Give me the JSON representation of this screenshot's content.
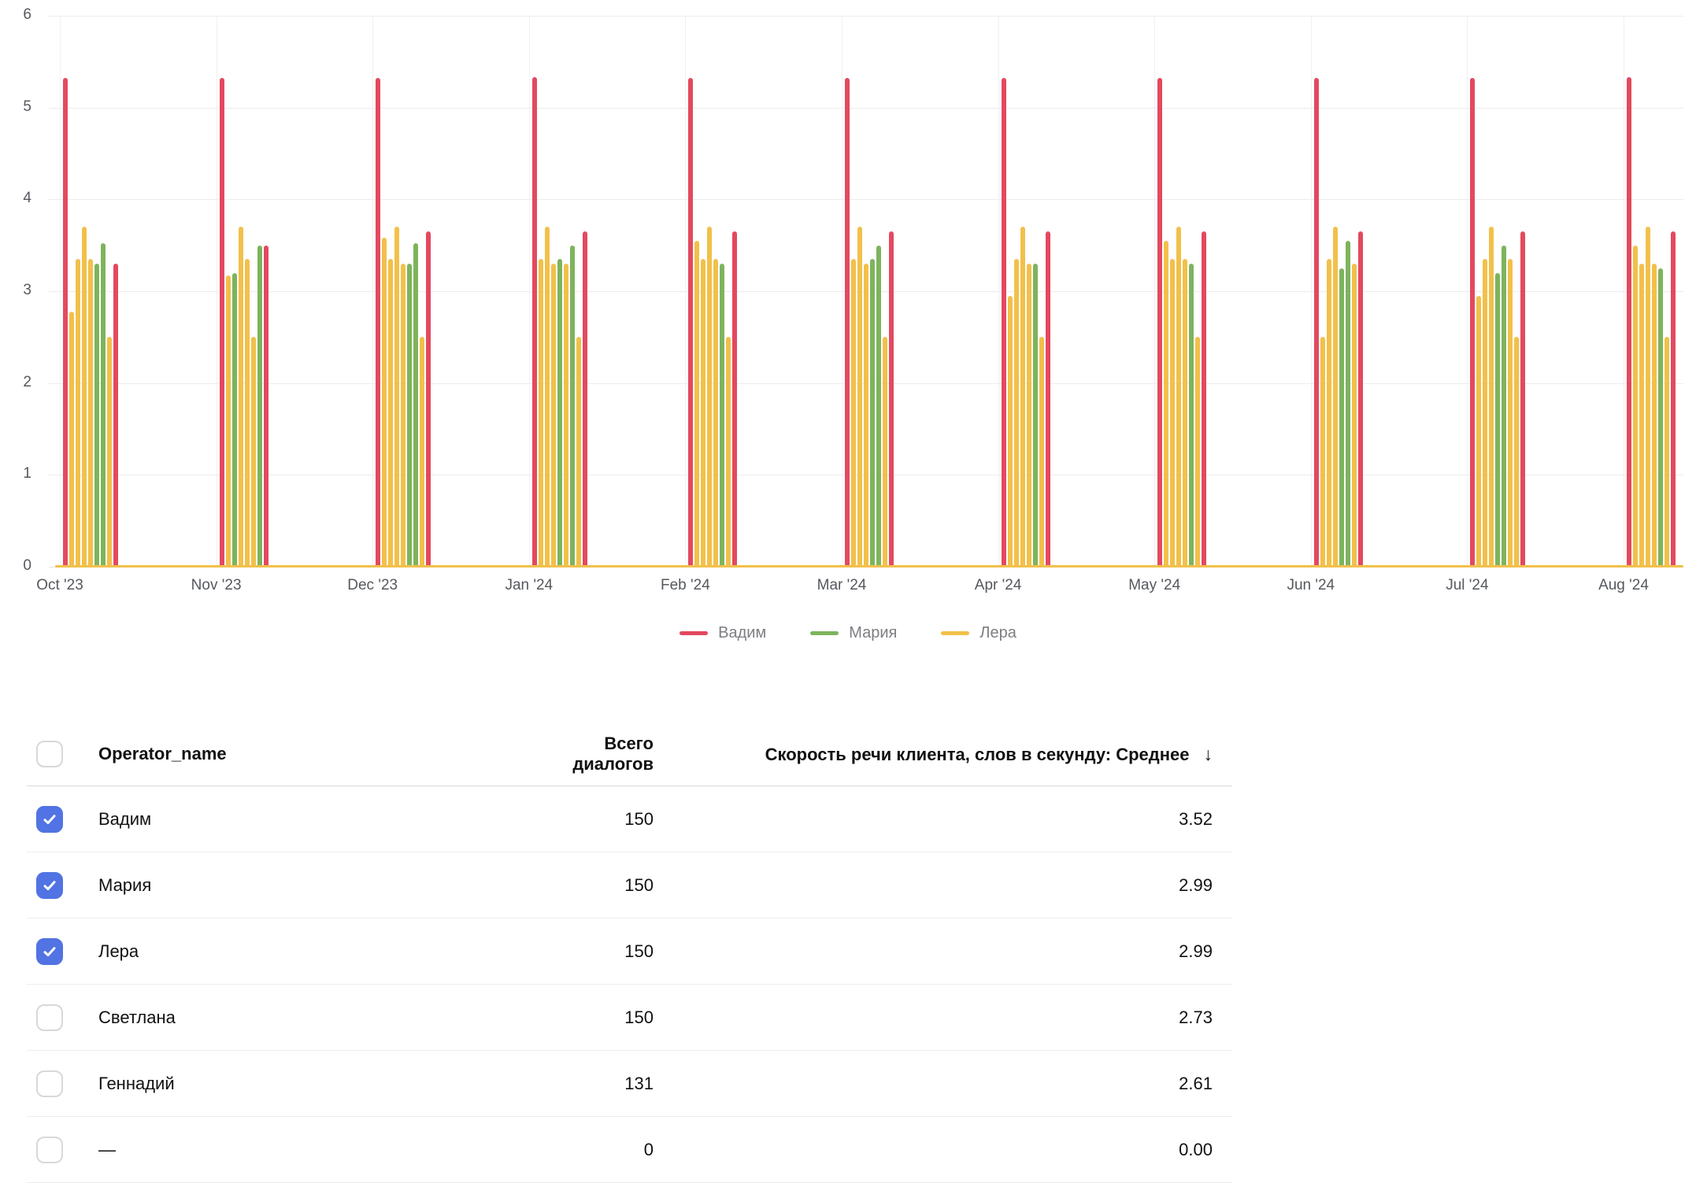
{
  "chart_data": {
    "type": "bar",
    "title": "",
    "xlabel": "",
    "ylabel": "",
    "ylim": [
      0,
      6
    ],
    "yticks": [
      0,
      1,
      2,
      3,
      4,
      5,
      6
    ],
    "grid": true,
    "legend_position": "bottom",
    "categories": [
      "Oct '23",
      "Nov '23",
      "Dec '23",
      "Jan '24",
      "Feb '24",
      "Mar '24",
      "Apr '24",
      "May '24",
      "Jun '24",
      "Jul '24",
      "Aug '24"
    ],
    "legend": [
      "Вадим",
      "Мария",
      "Лера"
    ],
    "series_colors": {
      "Вадим": "#e3495f",
      "Мария": "#7db45c",
      "Лера": "#f2c04a"
    },
    "baseline_series": "Лера",
    "baseline_value": 0.03,
    "clusters": [
      {
        "month": "Oct '23",
        "bars": [
          {
            "series": "Вадим",
            "value": 5.32
          },
          {
            "series": "Лера",
            "value": 2.78
          },
          {
            "series": "Лера",
            "value": 3.35
          },
          {
            "series": "Лера",
            "value": 3.7
          },
          {
            "series": "Лера",
            "value": 3.35
          },
          {
            "series": "Мария",
            "value": 3.3
          },
          {
            "series": "Мария",
            "value": 3.52
          },
          {
            "series": "Лера",
            "value": 2.5
          },
          {
            "series": "Вадим",
            "value": 3.3
          }
        ]
      },
      {
        "month": "Nov '23",
        "bars": [
          {
            "series": "Вадим",
            "value": 5.32
          },
          {
            "series": "Лера",
            "value": 3.17
          },
          {
            "series": "Мария",
            "value": 3.2
          },
          {
            "series": "Лера",
            "value": 3.7
          },
          {
            "series": "Лера",
            "value": 3.35
          },
          {
            "series": "Лера",
            "value": 2.5
          },
          {
            "series": "Мария",
            "value": 3.5
          },
          {
            "series": "Вадим",
            "value": 3.5
          }
        ]
      },
      {
        "month": "Dec '23",
        "bars": [
          {
            "series": "Вадим",
            "value": 5.32
          },
          {
            "series": "Лера",
            "value": 3.58
          },
          {
            "series": "Лера",
            "value": 3.35
          },
          {
            "series": "Лера",
            "value": 3.7
          },
          {
            "series": "Лера",
            "value": 3.3
          },
          {
            "series": "Мария",
            "value": 3.3
          },
          {
            "series": "Мария",
            "value": 3.52
          },
          {
            "series": "Лера",
            "value": 2.5
          },
          {
            "series": "Вадим",
            "value": 3.65
          }
        ]
      },
      {
        "month": "Jan '24",
        "bars": [
          {
            "series": "Вадим",
            "value": 5.33
          },
          {
            "series": "Лера",
            "value": 3.35
          },
          {
            "series": "Лера",
            "value": 3.7
          },
          {
            "series": "Лера",
            "value": 3.3
          },
          {
            "series": "Мария",
            "value": 3.35
          },
          {
            "series": "Лера",
            "value": 3.3
          },
          {
            "series": "Мария",
            "value": 3.5
          },
          {
            "series": "Лера",
            "value": 2.5
          },
          {
            "series": "Вадим",
            "value": 3.65
          }
        ]
      },
      {
        "month": "Feb '24",
        "bars": [
          {
            "series": "Вадим",
            "value": 5.32
          },
          {
            "series": "Лера",
            "value": 3.55
          },
          {
            "series": "Лера",
            "value": 3.35
          },
          {
            "series": "Лера",
            "value": 3.7
          },
          {
            "series": "Лера",
            "value": 3.35
          },
          {
            "series": "Мария",
            "value": 3.3
          },
          {
            "series": "Лера",
            "value": 2.5
          },
          {
            "series": "Вадим",
            "value": 3.65
          }
        ]
      },
      {
        "month": "Mar '24",
        "bars": [
          {
            "series": "Вадим",
            "value": 5.32
          },
          {
            "series": "Лера",
            "value": 3.35
          },
          {
            "series": "Лера",
            "value": 3.7
          },
          {
            "series": "Лера",
            "value": 3.3
          },
          {
            "series": "Мария",
            "value": 3.35
          },
          {
            "series": "Мария",
            "value": 3.5
          },
          {
            "series": "Лера",
            "value": 2.5
          },
          {
            "series": "Вадим",
            "value": 3.65
          }
        ]
      },
      {
        "month": "Apr '24",
        "bars": [
          {
            "series": "Вадим",
            "value": 5.32
          },
          {
            "series": "Лера",
            "value": 2.95
          },
          {
            "series": "Лера",
            "value": 3.35
          },
          {
            "series": "Лера",
            "value": 3.7
          },
          {
            "series": "Лера",
            "value": 3.3
          },
          {
            "series": "Мария",
            "value": 3.3
          },
          {
            "series": "Лера",
            "value": 2.5
          },
          {
            "series": "Вадим",
            "value": 3.65
          }
        ]
      },
      {
        "month": "May '24",
        "bars": [
          {
            "series": "Вадим",
            "value": 5.32
          },
          {
            "series": "Лера",
            "value": 3.55
          },
          {
            "series": "Лера",
            "value": 3.35
          },
          {
            "series": "Лера",
            "value": 3.7
          },
          {
            "series": "Лера",
            "value": 3.35
          },
          {
            "series": "Мария",
            "value": 3.3
          },
          {
            "series": "Лера",
            "value": 2.5
          },
          {
            "series": "Вадим",
            "value": 3.65
          }
        ]
      },
      {
        "month": "Jun '24",
        "bars": [
          {
            "series": "Вадим",
            "value": 5.32
          },
          {
            "series": "Лера",
            "value": 2.5
          },
          {
            "series": "Лера",
            "value": 3.35
          },
          {
            "series": "Лера",
            "value": 3.7
          },
          {
            "series": "Мария",
            "value": 3.25
          },
          {
            "series": "Мария",
            "value": 3.55
          },
          {
            "series": "Лера",
            "value": 3.3
          },
          {
            "series": "Вадим",
            "value": 3.65
          }
        ]
      },
      {
        "month": "Jul '24",
        "bars": [
          {
            "series": "Вадим",
            "value": 5.32
          },
          {
            "series": "Лера",
            "value": 2.95
          },
          {
            "series": "Лера",
            "value": 3.35
          },
          {
            "series": "Лера",
            "value": 3.7
          },
          {
            "series": "Мария",
            "value": 3.2
          },
          {
            "series": "Мария",
            "value": 3.5
          },
          {
            "series": "Лера",
            "value": 3.35
          },
          {
            "series": "Лера",
            "value": 2.5
          },
          {
            "series": "Вадим",
            "value": 3.65
          }
        ]
      },
      {
        "month": "Aug '24",
        "bars": [
          {
            "series": "Вадим",
            "value": 5.33
          },
          {
            "series": "Лера",
            "value": 3.5
          },
          {
            "series": "Лера",
            "value": 3.3
          },
          {
            "series": "Лера",
            "value": 3.7
          },
          {
            "series": "Лера",
            "value": 3.3
          },
          {
            "series": "Мария",
            "value": 3.25
          },
          {
            "series": "Лера",
            "value": 2.5
          },
          {
            "series": "Вадим",
            "value": 3.65
          }
        ]
      }
    ]
  },
  "table": {
    "headers": {
      "name": "Operator_name",
      "dialogs": "Всего диалогов",
      "speed": "Скорость речи клиента, слов в секунду: Среднее"
    },
    "sort_icon": "↓",
    "rows": [
      {
        "checked": true,
        "name": "Вадим",
        "dialogs": "150",
        "speed": "3.52"
      },
      {
        "checked": true,
        "name": "Мария",
        "dialogs": "150",
        "speed": "2.99"
      },
      {
        "checked": true,
        "name": "Лера",
        "dialogs": "150",
        "speed": "2.99"
      },
      {
        "checked": false,
        "name": "Светлана",
        "dialogs": "150",
        "speed": "2.73"
      },
      {
        "checked": false,
        "name": "Геннадий",
        "dialogs": "131",
        "speed": "2.61"
      },
      {
        "checked": false,
        "name": "—",
        "dialogs": "0",
        "speed": "0.00"
      }
    ]
  },
  "colors": {
    "checkbox_checked": "#5173e3",
    "gridline": "#ececec",
    "axis_text": "#55585e",
    "legend_text": "#7d7d83"
  }
}
